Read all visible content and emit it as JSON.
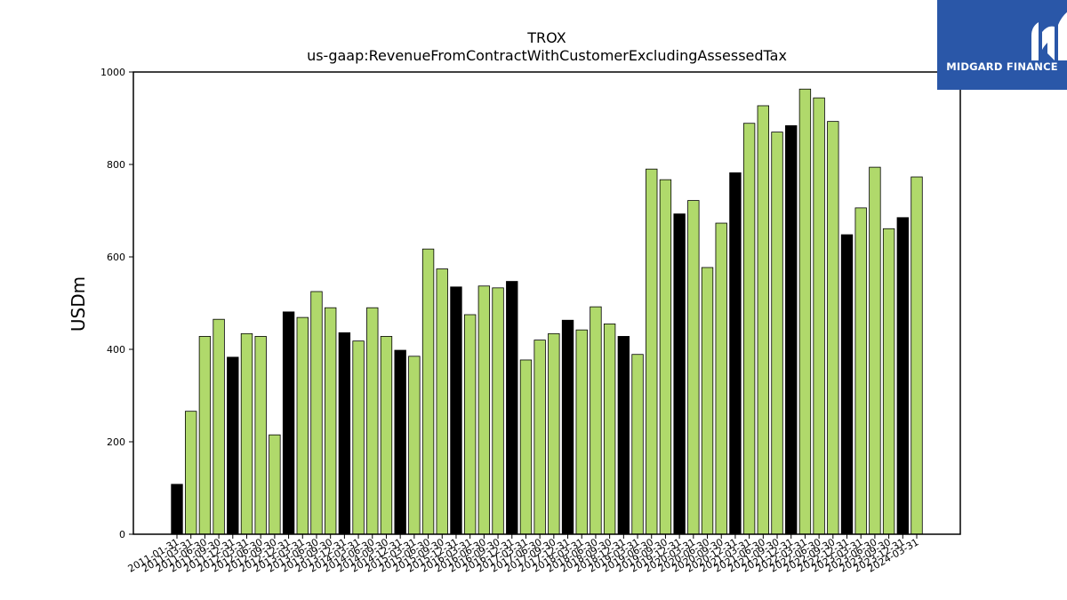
{
  "brand": {
    "name": "MIDGARD FINANCE",
    "color": "#2a57a8"
  },
  "chart_data": {
    "type": "bar",
    "title": "TROX",
    "subtitle": "us-gaap:RevenueFromContractWithCustomerExcludingAssessedTax",
    "xlabel": "",
    "ylabel": "USDm",
    "ylim": [
      0,
      1000
    ],
    "yticks": [
      0,
      200,
      400,
      600,
      800,
      1000
    ],
    "grid": false,
    "colors": {
      "default": "#b0d96b",
      "highlight": "#000000",
      "edge": "#000000"
    },
    "categories": [
      "2011-01-31",
      "2011-03-31",
      "2011-06-30",
      "2011-09-30",
      "2011-12-31",
      "2012-03-31",
      "2012-06-30",
      "2012-09-30",
      "2012-12-31",
      "2013-03-31",
      "2013-06-30",
      "2013-09-30",
      "2013-12-31",
      "2014-03-31",
      "2014-06-30",
      "2014-09-30",
      "2014-12-31",
      "2015-03-31",
      "2015-06-30",
      "2015-09-30",
      "2015-12-31",
      "2016-03-31",
      "2016-06-30",
      "2016-09-30",
      "2016-12-31",
      "2017-03-31",
      "2017-06-30",
      "2017-09-30",
      "2017-12-31",
      "2018-03-31",
      "2018-06-30",
      "2018-09-30",
      "2018-12-31",
      "2019-03-31",
      "2019-06-30",
      "2019-09-30",
      "2019-12-31",
      "2020-03-31",
      "2020-06-30",
      "2020-09-30",
      "2020-12-31",
      "2021-03-31",
      "2021-06-30",
      "2021-09-30",
      "2021-12-31",
      "2022-03-31",
      "2022-06-30",
      "2022-09-30",
      "2022-12-31",
      "2023-03-31",
      "2023-06-30",
      "2023-09-30",
      "2023-12-31",
      "2024-03-31"
    ],
    "values": [
      108,
      266,
      428,
      465,
      383,
      434,
      428,
      215,
      481,
      469,
      525,
      490,
      436,
      418,
      490,
      428,
      398,
      385,
      617,
      574,
      535,
      475,
      537,
      533,
      547,
      377,
      420,
      434,
      463,
      442,
      492,
      455,
      428,
      389,
      790,
      767,
      693,
      722,
      577,
      673,
      782,
      889,
      927,
      870,
      884,
      963,
      944,
      893,
      648,
      706,
      794,
      661,
      685,
      773
    ],
    "highlight": [
      true,
      false,
      false,
      false,
      true,
      false,
      false,
      false,
      true,
      false,
      false,
      false,
      true,
      false,
      false,
      false,
      true,
      false,
      false,
      false,
      true,
      false,
      false,
      false,
      true,
      false,
      false,
      false,
      true,
      false,
      false,
      false,
      true,
      false,
      false,
      false,
      true,
      false,
      false,
      false,
      true,
      false,
      false,
      false,
      true,
      false,
      false,
      false,
      true,
      false,
      false,
      false,
      true,
      false
    ]
  }
}
